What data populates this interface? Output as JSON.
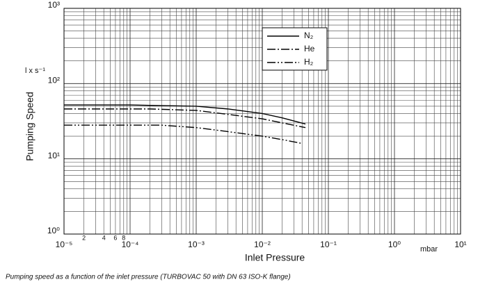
{
  "chart_data": {
    "type": "line",
    "x_label": "Inlet Pressure",
    "y_label": "Pumping Speed",
    "y_unit": "l x s⁻¹",
    "x_unit": "mbar",
    "caption": "Pumping speed as a function of the inlet pressure (TURBOVAC 50 with DN 63 ISO-K flange)",
    "xscale": "log",
    "yscale": "log",
    "grid": true,
    "legend": "upper right",
    "xlim": [
      1e-05,
      10
    ],
    "ylim": [
      1,
      1000
    ],
    "xticks": [
      {
        "value": 1e-05,
        "label": "10⁻⁵"
      },
      {
        "value": 0.0001,
        "label": "10⁻⁴"
      },
      {
        "value": 0.001,
        "label": "10⁻³"
      },
      {
        "value": 0.01,
        "label": "10⁻²"
      },
      {
        "value": 0.1,
        "label": "10⁻¹"
      },
      {
        "value": 1,
        "label": "10⁰"
      },
      {
        "value": 10,
        "label": "10¹"
      }
    ],
    "x_minor_labels": [
      {
        "value": 2e-05,
        "label": "2"
      },
      {
        "value": 4e-05,
        "label": "4"
      },
      {
        "value": 6e-05,
        "label": "6"
      },
      {
        "value": 8e-05,
        "label": "8"
      }
    ],
    "yticks": [
      {
        "value": 1,
        "label": "10⁰"
      },
      {
        "value": 10,
        "label": "10¹"
      },
      {
        "value": 100,
        "label": "10²"
      },
      {
        "value": 1000,
        "label": "10³"
      }
    ],
    "series": [
      {
        "name": "N₂",
        "color": "#000000",
        "dash": "solid",
        "x": [
          1e-05,
          0.0001,
          0.0003,
          0.001,
          0.003,
          0.01,
          0.02,
          0.045
        ],
        "values": [
          52,
          52,
          51,
          50,
          46,
          40,
          35,
          29
        ]
      },
      {
        "name": "He",
        "color": "#000000",
        "dash": "dash-dot",
        "x": [
          1e-05,
          0.0002,
          0.001,
          0.003,
          0.01,
          0.02,
          0.045
        ],
        "values": [
          46,
          46,
          44,
          39,
          34,
          30,
          26
        ]
      },
      {
        "name": "H₂",
        "color": "#000000",
        "dash": "dash-dot-dot",
        "x": [
          1e-05,
          0.0003,
          0.001,
          0.003,
          0.01,
          0.02,
          0.04
        ],
        "values": [
          28,
          28,
          26,
          23,
          20,
          18,
          16
        ]
      }
    ]
  }
}
